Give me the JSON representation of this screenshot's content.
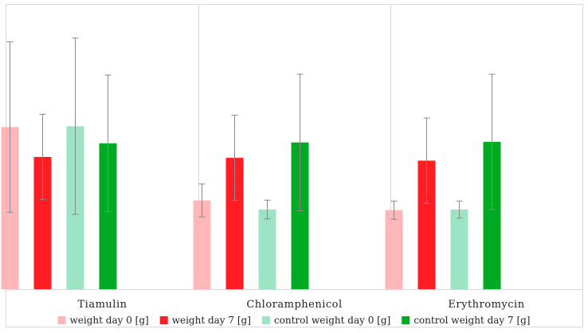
{
  "chart_data": {
    "type": "bar",
    "title": "",
    "xlabel": "",
    "ylabel": "",
    "categories": [
      "Tiamulin",
      "Chloramphenicol",
      "Erythromycin"
    ],
    "ylim": [
      0,
      100
    ],
    "grid": false,
    "legend_position": "bottom",
    "series": [
      {
        "name": "weight day 0 [g]",
        "color": "#ffb6b9",
        "values": [
          57,
          31.2,
          27.8
        ],
        "error": [
          30,
          5.8,
          3.2
        ]
      },
      {
        "name": "weight day 7 [g]",
        "color": "#ff1c23",
        "values": [
          46.5,
          46.2,
          45.2
        ],
        "error": [
          15,
          15,
          15
        ]
      },
      {
        "name": "control weight day 0 [g]",
        "color": "#9ce4c4",
        "values": [
          57.3,
          28,
          28
        ],
        "error": [
          31,
          3.3,
          3
        ]
      },
      {
        "name": "control weight day 7 [g]",
        "color": "#00aa22",
        "values": [
          51.3,
          51.6,
          51.8
        ],
        "error": [
          24,
          24,
          23.8
        ]
      }
    ]
  }
}
